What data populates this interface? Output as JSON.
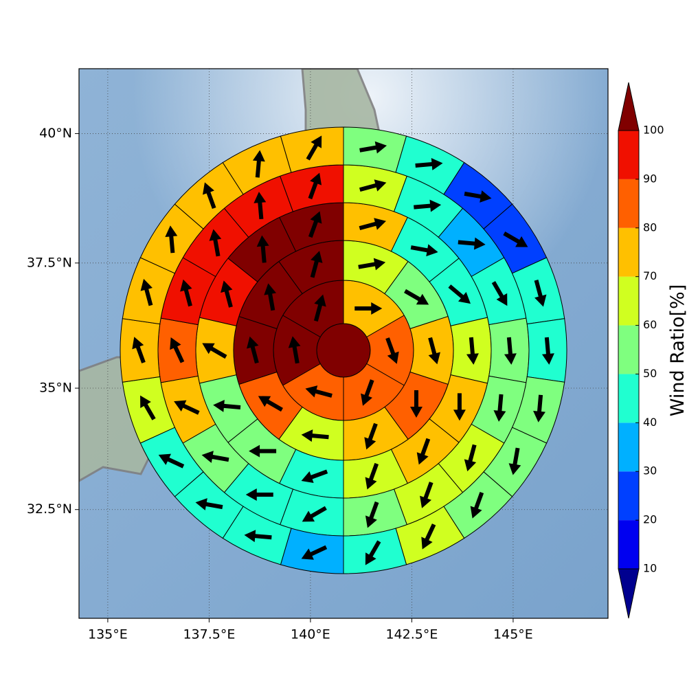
{
  "chart_data": {
    "type": "polar_sector_map",
    "xlim": [
      134.29,
      147.34
    ],
    "ylim": [
      30.2,
      41.22
    ],
    "xticks": [
      {
        "value": 135,
        "label": "135°E"
      },
      {
        "value": 137.5,
        "label": "137.5°E"
      },
      {
        "value": 140,
        "label": "140°E"
      },
      {
        "value": 142.5,
        "label": "142.5°E"
      },
      {
        "value": 145,
        "label": "145°E"
      }
    ],
    "yticks": [
      {
        "value": 32.5,
        "label": "32.5°N"
      },
      {
        "value": 35,
        "label": "35°N"
      },
      {
        "value": 37.5,
        "label": "37.5°N"
      },
      {
        "value": 40,
        "label": "40°N"
      }
    ],
    "grid": true,
    "colorbar": {
      "label": "Wind Ratio[%]",
      "ticks": [
        10,
        20,
        30,
        40,
        50,
        60,
        70,
        80,
        90,
        100
      ],
      "colors": [
        "#00008f",
        "#0000f0",
        "#0040ff",
        "#00b0ff",
        "#20ffd0",
        "#7fff7f",
        "#d0ff20",
        "#ffc000",
        "#ff6000",
        "#f01000",
        "#800000"
      ]
    },
    "center_value": 105,
    "rings": [
      {
        "values": [
          75,
          85,
          85,
          85,
          105,
          105
        ],
        "directions": [
          90,
          160,
          200,
          285,
          350,
          15
        ]
      },
      {
        "values": [
          65,
          55,
          75,
          85,
          75,
          65,
          85,
          105,
          105,
          105
        ],
        "directions": [
          80,
          120,
          165,
          180,
          200,
          275,
          300,
          345,
          350,
          15
        ]
      },
      {
        "values": [
          75,
          45,
          45,
          65,
          75,
          75,
          65,
          45,
          55,
          55,
          75,
          95,
          105,
          105
        ],
        "directions": [
          75,
          100,
          130,
          175,
          180,
          200,
          200,
          250,
          270,
          275,
          300,
          345,
          355,
          20
        ]
      },
      {
        "values": [
          65,
          45,
          35,
          45,
          55,
          55,
          65,
          65,
          55,
          45,
          45,
          55,
          75,
          85,
          95,
          95,
          95,
          95
        ],
        "directions": [
          75,
          85,
          95,
          150,
          175,
          185,
          195,
          200,
          200,
          240,
          270,
          280,
          295,
          335,
          345,
          350,
          355,
          20
        ]
      },
      {
        "values": [
          55,
          45,
          25,
          25,
          45,
          45,
          55,
          55,
          55,
          65,
          45,
          35,
          45,
          45,
          45,
          65,
          75,
          75,
          75,
          75,
          75,
          75
        ],
        "directions": [
          80,
          85,
          100,
          120,
          165,
          175,
          185,
          190,
          200,
          205,
          210,
          245,
          275,
          280,
          295,
          330,
          340,
          345,
          355,
          340,
          5,
          30
        ]
      }
    ]
  }
}
